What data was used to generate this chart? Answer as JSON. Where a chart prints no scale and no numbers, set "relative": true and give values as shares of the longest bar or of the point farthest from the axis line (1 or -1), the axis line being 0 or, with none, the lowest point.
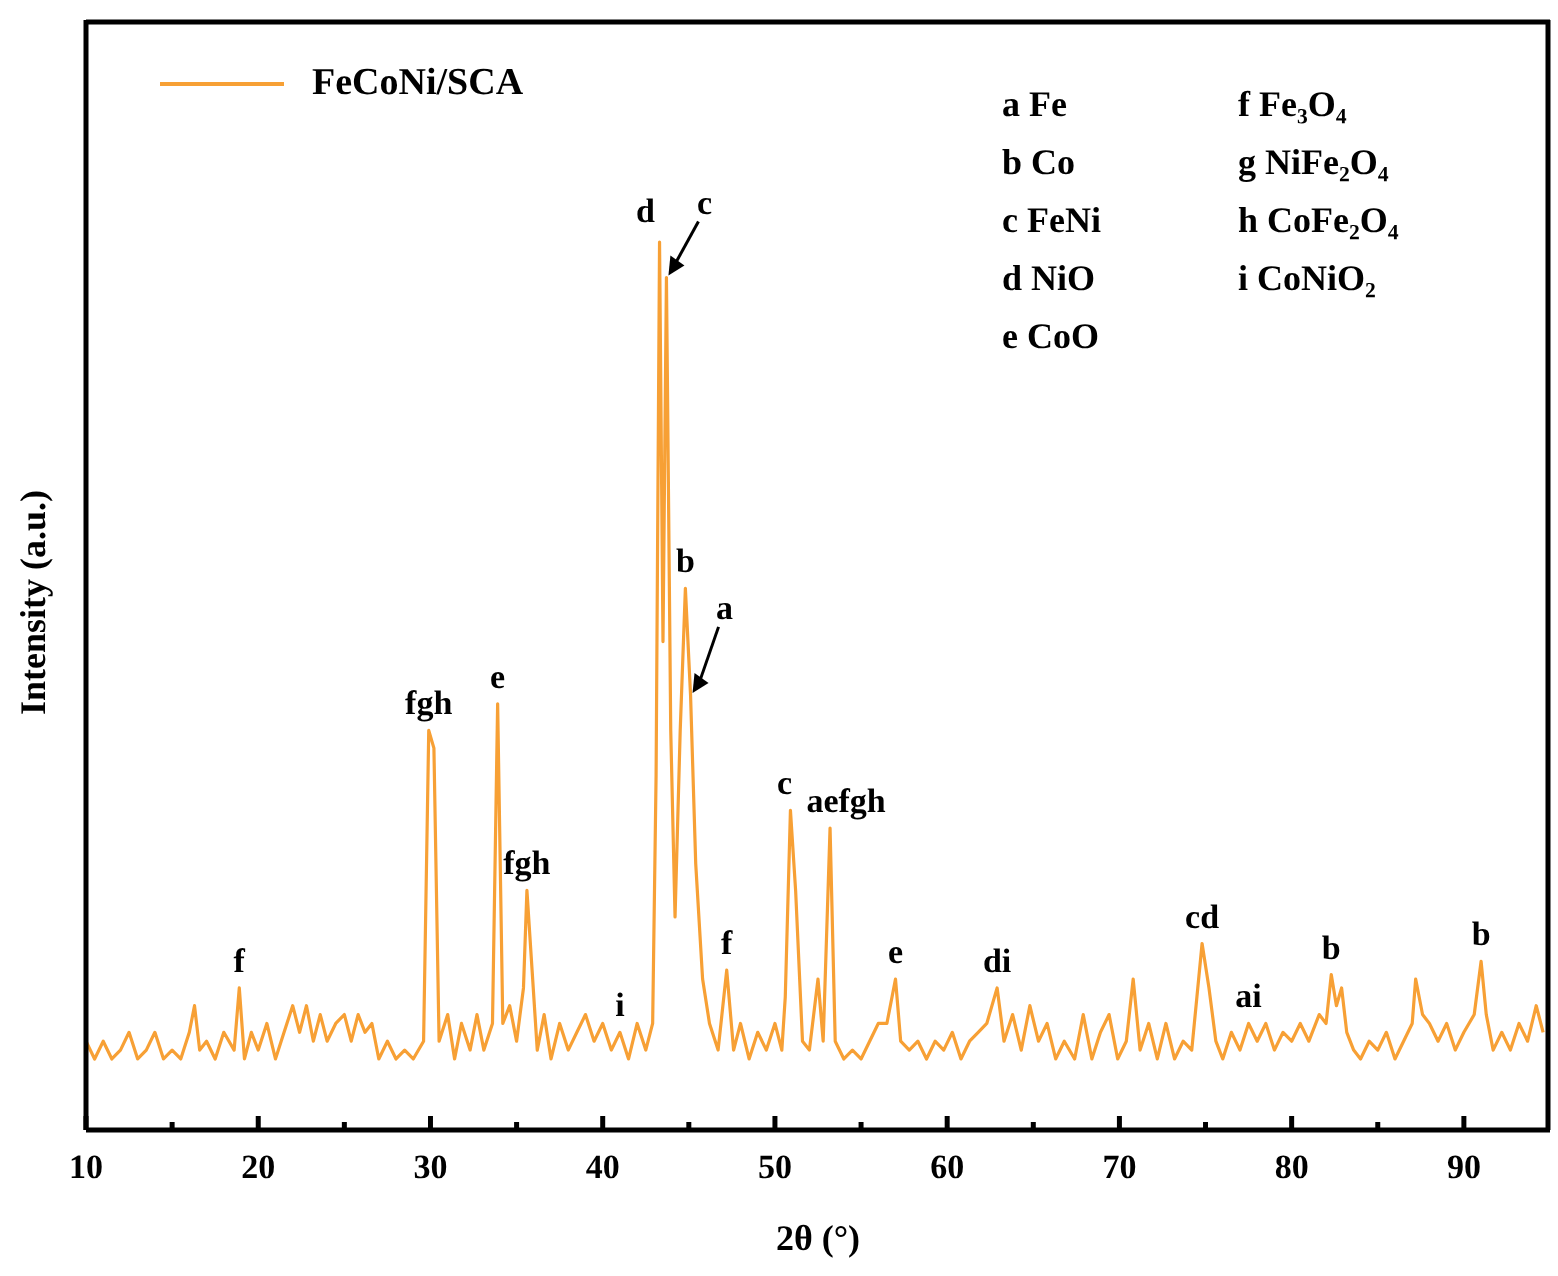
{
  "chart_data": {
    "type": "line",
    "relative": true,
    "xlabel": "2θ (°)",
    "ylabel": "Intensity (a.u.)",
    "xlim": [
      10,
      95
    ],
    "xticks": [
      10,
      {
        "value": 15,
        "label": null
      },
      20,
      {
        "value": 25,
        "label": null
      },
      30,
      {
        "value": 35,
        "label": null
      },
      40,
      {
        "value": 45,
        "label": null
      },
      50,
      {
        "value": 55,
        "label": null
      },
      60,
      {
        "value": 65,
        "label": null
      },
      70,
      {
        "value": 75,
        "label": null
      },
      80,
      {
        "value": 85,
        "label": null
      },
      90
    ],
    "legend": "top left",
    "grid": false,
    "marker": "none",
    "line_style": "solid",
    "series": [
      {
        "name": "FeCoNi/SCA",
        "color": "#f7a035",
        "x": [
          10,
          10.5,
          11,
          11.5,
          12,
          12.5,
          13,
          13.5,
          14,
          14.5,
          15,
          15.5,
          16,
          16.3,
          16.6,
          17,
          17.5,
          18,
          18.6,
          18.9,
          19.2,
          19.6,
          20,
          20.5,
          21,
          21.5,
          22,
          22.4,
          22.8,
          23.2,
          23.6,
          24,
          24.5,
          25,
          25.4,
          25.8,
          26.2,
          26.6,
          27,
          27.5,
          28,
          28.5,
          29,
          29.6,
          29.9,
          30.2,
          30.5,
          31,
          31.4,
          31.8,
          32.3,
          32.7,
          33.1,
          33.6,
          33.9,
          34.2,
          34.6,
          35,
          35.4,
          35.6,
          35.9,
          36.2,
          36.6,
          37,
          37.5,
          38,
          38.5,
          39,
          39.5,
          40,
          40.5,
          41,
          41.5,
          42,
          42.5,
          42.9,
          43.1,
          43.3,
          43.5,
          43.7,
          43.95,
          44.2,
          44.5,
          44.8,
          45.1,
          45.4,
          45.8,
          46.2,
          46.7,
          47.2,
          47.6,
          48,
          48.5,
          49,
          49.5,
          50,
          50.4,
          50.6,
          50.9,
          51.2,
          51.6,
          52,
          52.5,
          52.8,
          53.2,
          53.5,
          54,
          54.5,
          55,
          55.5,
          56,
          56.5,
          57,
          57.3,
          57.8,
          58.3,
          58.8,
          59.3,
          59.8,
          60.3,
          60.8,
          61.3,
          61.8,
          62.3,
          62.9,
          63.3,
          63.8,
          64.3,
          64.8,
          65.3,
          65.8,
          66.3,
          66.8,
          67.4,
          67.9,
          68.4,
          68.9,
          69.4,
          69.9,
          70.4,
          70.8,
          71.2,
          71.7,
          72.2,
          72.7,
          73.2,
          73.7,
          74.2,
          74.5,
          74.8,
          75.2,
          75.6,
          76,
          76.5,
          77,
          77.5,
          78,
          78.5,
          79,
          79.5,
          80,
          80.5,
          81,
          81.6,
          82,
          82.3,
          82.6,
          82.9,
          83.2,
          83.6,
          84,
          84.5,
          85,
          85.5,
          86,
          86.5,
          87,
          87.2,
          87.6,
          88,
          88.5,
          89,
          89.5,
          90,
          90.6,
          91,
          91.3,
          91.7,
          92.2,
          92.7,
          93.2,
          93.7,
          94.2,
          94.6
        ],
        "values": [
          0.1,
          0.08,
          0.1,
          0.08,
          0.09,
          0.11,
          0.08,
          0.09,
          0.11,
          0.08,
          0.09,
          0.08,
          0.11,
          0.14,
          0.09,
          0.1,
          0.08,
          0.11,
          0.09,
          0.16,
          0.08,
          0.11,
          0.09,
          0.12,
          0.08,
          0.11,
          0.14,
          0.11,
          0.14,
          0.1,
          0.13,
          0.1,
          0.12,
          0.13,
          0.1,
          0.13,
          0.11,
          0.12,
          0.08,
          0.1,
          0.08,
          0.09,
          0.08,
          0.1,
          0.45,
          0.43,
          0.1,
          0.13,
          0.08,
          0.12,
          0.09,
          0.13,
          0.09,
          0.12,
          0.48,
          0.12,
          0.14,
          0.1,
          0.16,
          0.27,
          0.18,
          0.09,
          0.13,
          0.08,
          0.12,
          0.09,
          0.11,
          0.13,
          0.1,
          0.12,
          0.09,
          0.11,
          0.08,
          0.12,
          0.09,
          0.12,
          0.4,
          1.0,
          0.55,
          0.96,
          0.45,
          0.24,
          0.45,
          0.61,
          0.49,
          0.3,
          0.17,
          0.12,
          0.09,
          0.18,
          0.09,
          0.12,
          0.08,
          0.11,
          0.09,
          0.12,
          0.09,
          0.15,
          0.36,
          0.27,
          0.1,
          0.09,
          0.17,
          0.1,
          0.34,
          0.1,
          0.08,
          0.09,
          0.08,
          0.1,
          0.12,
          0.12,
          0.17,
          0.1,
          0.09,
          0.1,
          0.08,
          0.1,
          0.09,
          0.11,
          0.08,
          0.1,
          0.11,
          0.12,
          0.16,
          0.1,
          0.13,
          0.09,
          0.14,
          0.1,
          0.12,
          0.08,
          0.1,
          0.08,
          0.13,
          0.08,
          0.11,
          0.13,
          0.08,
          0.1,
          0.17,
          0.09,
          0.12,
          0.08,
          0.12,
          0.08,
          0.1,
          0.09,
          0.15,
          0.21,
          0.16,
          0.1,
          0.08,
          0.11,
          0.09,
          0.12,
          0.1,
          0.12,
          0.09,
          0.11,
          0.1,
          0.12,
          0.1,
          0.13,
          0.12,
          0.175,
          0.14,
          0.16,
          0.11,
          0.09,
          0.08,
          0.1,
          0.09,
          0.11,
          0.08,
          0.1,
          0.12,
          0.17,
          0.13,
          0.12,
          0.1,
          0.12,
          0.09,
          0.11,
          0.13,
          0.19,
          0.13,
          0.09,
          0.11,
          0.09,
          0.12,
          0.1,
          0.14,
          0.11
        ]
      }
    ],
    "annotations": [
      {
        "text": "f",
        "x": 18.9,
        "y": 0.16
      },
      {
        "text": "fgh",
        "x": 29.9,
        "y": 0.45
      },
      {
        "text": "e",
        "x": 33.9,
        "y": 0.48
      },
      {
        "text": "fgh",
        "x": 35.6,
        "y": 0.27
      },
      {
        "text": "i",
        "x": 41,
        "y": 0.11
      },
      {
        "text": "d",
        "x": 43.3,
        "y": 1.0
      },
      {
        "text": "c",
        "x": 43.7,
        "y": 0.96
      },
      {
        "text": "b",
        "x": 44.8,
        "y": 0.61
      },
      {
        "text": "a",
        "x": 45.1,
        "y": 0.49
      },
      {
        "text": "f",
        "x": 47.2,
        "y": 0.18
      },
      {
        "text": "c",
        "x": 50.9,
        "y": 0.36
      },
      {
        "text": "aefgh",
        "x": 53.2,
        "y": 0.34
      },
      {
        "text": "e",
        "x": 57,
        "y": 0.17
      },
      {
        "text": "di",
        "x": 62.9,
        "y": 0.16
      },
      {
        "text": "cd",
        "x": 74.8,
        "y": 0.21
      },
      {
        "text": "ai",
        "x": 77.5,
        "y": 0.12
      },
      {
        "text": "b",
        "x": 82.3,
        "y": 0.175
      },
      {
        "text": "b",
        "x": 91,
        "y": 0.19
      },
      "a Fe",
      "b Co",
      "c FeNi",
      "d NiO",
      "e CoO",
      "f Fe₃O₄",
      "g NiFe₂O₄",
      "h CoFe₂O₄",
      "i CoNiO₂"
    ]
  }
}
